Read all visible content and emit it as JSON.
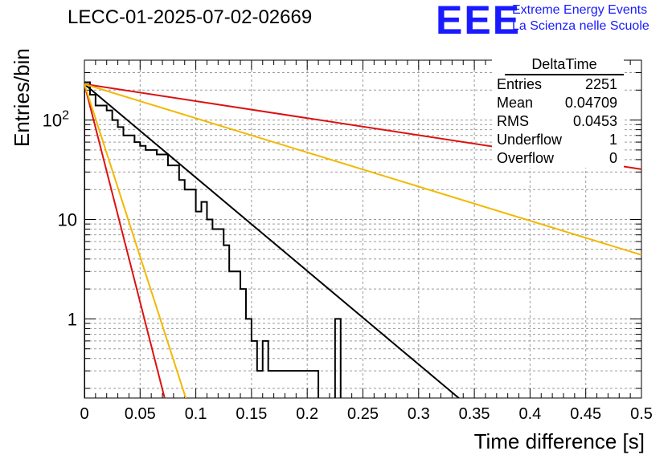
{
  "title": "LECC-01-2025-07-02-02669",
  "logo": {
    "text": "EEE",
    "line1": "Extreme Energy Events",
    "line2": "La Scienza nelle Scuole",
    "color": "#1a1aff"
  },
  "stats": {
    "title": "DeltaTime",
    "rows": [
      {
        "label": "Entries",
        "value": "2251"
      },
      {
        "label": "Mean",
        "value": "0.04709"
      },
      {
        "label": "RMS",
        "value": "0.0453"
      },
      {
        "label": "Underflow",
        "value": "1"
      },
      {
        "label": "Overflow",
        "value": "0"
      }
    ]
  },
  "chart_data": {
    "type": "histogram",
    "xlabel": "Time difference [s]",
    "ylabel": "Entries/bin",
    "xlim": [
      0,
      0.5
    ],
    "ylim": [
      0.16,
      400
    ],
    "yscale": "log",
    "grid": true,
    "x_ticks": [
      "0",
      "0.05",
      "0.1",
      "0.15",
      "0.2",
      "0.25",
      "0.3",
      "0.35",
      "0.4",
      "0.45",
      "0.5"
    ],
    "y_ticks": [
      {
        "value": 1,
        "label": "1"
      },
      {
        "value": 10,
        "label": "10"
      },
      {
        "value": 100,
        "label": "10",
        "exp": "2"
      }
    ],
    "bin_width": 0.005,
    "histogram": [
      240,
      180,
      140,
      140,
      125,
      100,
      85,
      70,
      70,
      60,
      55,
      50,
      50,
      45,
      45,
      35,
      35,
      25,
      20,
      20,
      12,
      15,
      10,
      8,
      8,
      5.5,
      3,
      3,
      2,
      1,
      0.6,
      0.3,
      0.6,
      0.3,
      0.3,
      0.3,
      0.3,
      0.3,
      0.3,
      0.3,
      0.3,
      0.3,
      0,
      0,
      0,
      1,
      0,
      0,
      0,
      0,
      0,
      0,
      0,
      0,
      0,
      0,
      0,
      0,
      0,
      0,
      0,
      0,
      0,
      0,
      0,
      0,
      0,
      0,
      0,
      0,
      0,
      0,
      0,
      0,
      0,
      0,
      0,
      0,
      0,
      0,
      0,
      0,
      0,
      0,
      0,
      0,
      0,
      0,
      0,
      0,
      0,
      0,
      0,
      0,
      0,
      0,
      0,
      0,
      0
    ],
    "hist_color": "#000000",
    "curves": [
      {
        "color": "#000000",
        "y0": 230,
        "y1": 0.16,
        "x1": 0.336
      },
      {
        "color": "#dd1111",
        "y0": 230,
        "y1": 0.16,
        "x1": 0.072
      },
      {
        "color": "#f2b800",
        "y0": 230,
        "y1": 0.16,
        "x1": 0.091
      },
      {
        "color": "#dd1111",
        "y0": 230,
        "y1": 32,
        "x1": 0.5
      },
      {
        "color": "#f2b800",
        "y0": 230,
        "y1": 4.4,
        "x1": 0.5
      }
    ]
  }
}
